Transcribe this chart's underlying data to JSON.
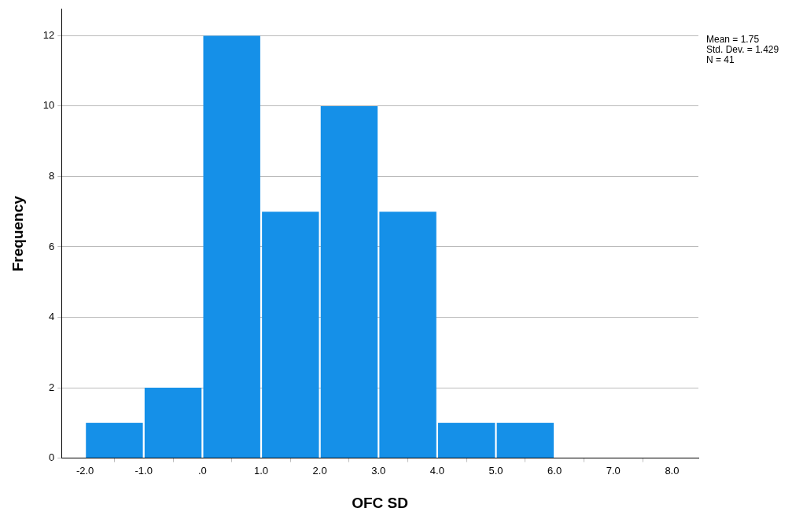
{
  "chart_data": {
    "type": "histogram",
    "xlabel": "OFC SD",
    "ylabel": "Frequency",
    "bins": [
      -2,
      -1,
      0,
      1,
      2,
      3,
      4,
      5,
      6
    ],
    "values": [
      1,
      2,
      12,
      7,
      10,
      7,
      1,
      1
    ],
    "color": "#1590e8",
    "xlim": [
      -2.4,
      8.45
    ],
    "xticks": [
      {
        "value": -2,
        "label": "-2.0"
      },
      {
        "value": -1,
        "label": "-1.0"
      },
      {
        "value": 0,
        "label": ".0"
      },
      {
        "value": 1,
        "label": "1.0"
      },
      {
        "value": 2,
        "label": "2.0"
      },
      {
        "value": 3,
        "label": "3.0"
      },
      {
        "value": 4,
        "label": "4.0"
      },
      {
        "value": 5,
        "label": "5.0"
      },
      {
        "value": 6,
        "label": "6.0"
      },
      {
        "value": 7,
        "label": "7.0"
      },
      {
        "value": 8,
        "label": "8.0"
      }
    ],
    "ylim": [
      0,
      12.75
    ],
    "yticks": [
      0,
      2,
      4,
      6,
      8,
      10,
      12
    ],
    "grid": "y",
    "annotations": [
      "Mean = 1.75",
      "Std. Dev. = 1.429",
      "N = 41"
    ]
  }
}
